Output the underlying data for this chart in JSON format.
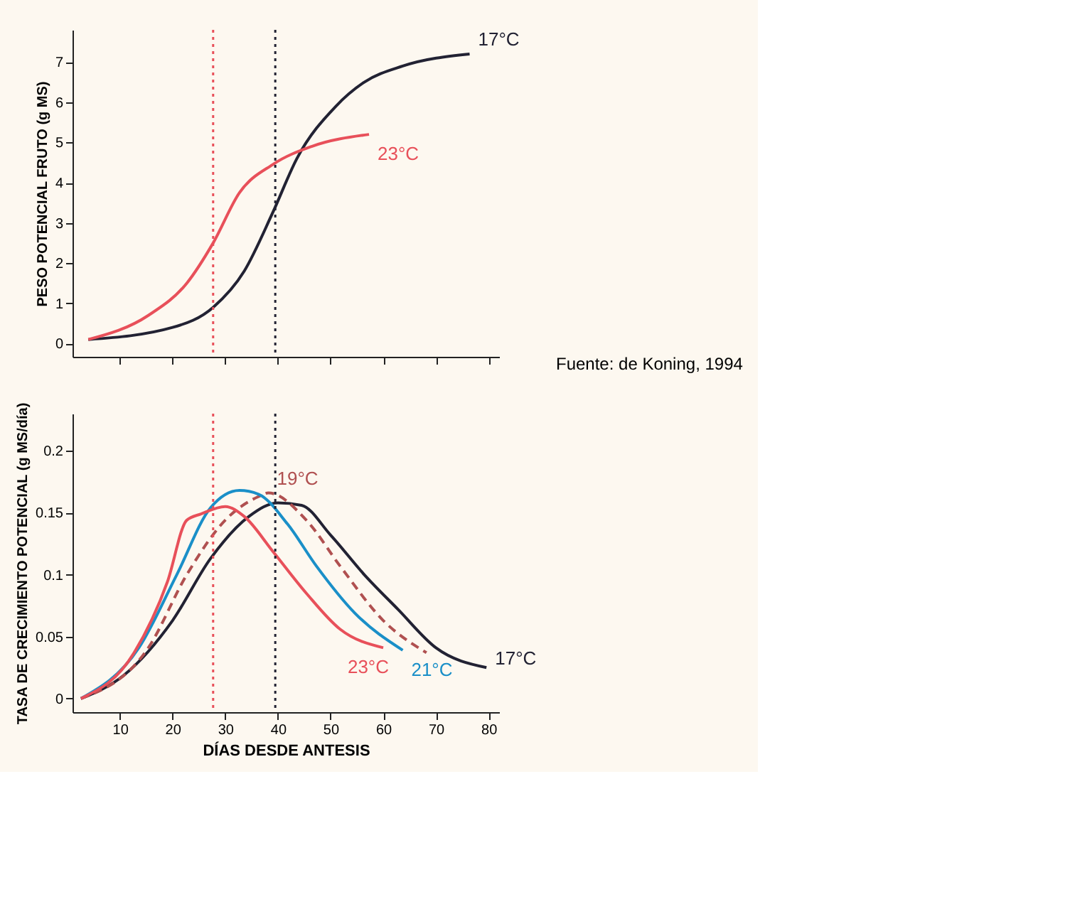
{
  "chart_data": [
    {
      "type": "line",
      "ylabel": "PESO POTENCIAL FRUTO (g MS)",
      "xlim": [
        1,
        82
      ],
      "ylim": [
        -0.33,
        7.8
      ],
      "yticks": [
        0,
        1,
        2,
        3,
        4,
        5,
        6,
        7
      ],
      "xticks": [
        10,
        20,
        30,
        40,
        50,
        60,
        70,
        80
      ],
      "tick_labels": "y",
      "grid": false,
      "legend": false,
      "annotations": [
        "Fuente: de Koning, 1994"
      ],
      "ref_lines": [
        {
          "axis": "x",
          "value": 27.7,
          "color": "#e8505a",
          "line_style": "dotted"
        },
        {
          "axis": "x",
          "value": 39.5,
          "color": "#222233",
          "line_style": "dotted"
        }
      ],
      "series": [
        {
          "name": "17°C",
          "color": "#222233",
          "x": [
            4,
            20,
            27.7,
            33.6,
            39,
            43.6,
            51,
            56.4,
            63.7,
            76.4
          ],
          "values": [
            0.1,
            0.4,
            0.9,
            1.8,
            3.25,
            4.6,
            5.9,
            6.5,
            6.9,
            7.2
          ]
        },
        {
          "name": "23°C",
          "color": "#e8505a",
          "x": [
            4,
            15.4,
            22.7,
            27.7,
            32.7,
            39,
            46.4,
            57.3
          ],
          "values": [
            0.1,
            0.7,
            1.5,
            2.5,
            3.75,
            4.45,
            4.9,
            5.2
          ]
        }
      ]
    },
    {
      "type": "line",
      "ylabel": "TASA DE CRECIMIENTO POTENCIAL (g MS/día)",
      "xlabel": "DÍAS DESDE ANTESIS",
      "xlim": [
        1,
        82
      ],
      "ylim": [
        -0.011,
        0.23
      ],
      "yticks": [
        0,
        0.05,
        0.1,
        0.15,
        0.2
      ],
      "xticks": [
        10,
        20,
        30,
        40,
        50,
        60,
        70,
        80
      ],
      "grid": false,
      "legend": false,
      "ref_lines": [
        {
          "axis": "x",
          "value": 27.7,
          "color": "#e8505a",
          "line_style": "dotted"
        },
        {
          "axis": "x",
          "value": 39.5,
          "color": "#222233",
          "line_style": "dotted"
        }
      ],
      "series": [
        {
          "name": "17°C",
          "color": "#222233",
          "x": [
            2.6,
            10.8,
            20,
            27.2,
            34.5,
            40,
            44.5,
            50,
            56.4,
            62.8,
            70,
            79.6
          ],
          "values": [
            0,
            0.019,
            0.063,
            0.113,
            0.147,
            0.158,
            0.156,
            0.132,
            0.1,
            0.072,
            0.041,
            0.025
          ]
        },
        {
          "name": "19°C",
          "color": "#b05050",
          "line_style": "dashed",
          "x": [
            2.6,
            15.4,
            22.7,
            30,
            36.3,
            38.2,
            45.4,
            51.8,
            60,
            68.2
          ],
          "values": [
            0,
            0.041,
            0.1,
            0.144,
            0.163,
            0.166,
            0.144,
            0.107,
            0.063,
            0.037
          ]
        },
        {
          "name": "21°C",
          "color": "#1a8fc8",
          "x": [
            2.6,
            13.6,
            20.8,
            27.2,
            32.7,
            36.3,
            41.8,
            47.3,
            54.6,
            63.7
          ],
          "values": [
            0,
            0.041,
            0.1,
            0.154,
            0.168,
            0.165,
            0.141,
            0.107,
            0.069,
            0.039
          ]
        },
        {
          "name": "23°C",
          "color": "#e8505a",
          "x": [
            2.6,
            12.7,
            19,
            22.7,
            25.4,
            30,
            33.6,
            39,
            45.4,
            51.8,
            60
          ],
          "values": [
            0,
            0.037,
            0.094,
            0.144,
            0.149,
            0.155,
            0.147,
            0.119,
            0.085,
            0.056,
            0.041
          ]
        }
      ]
    }
  ]
}
